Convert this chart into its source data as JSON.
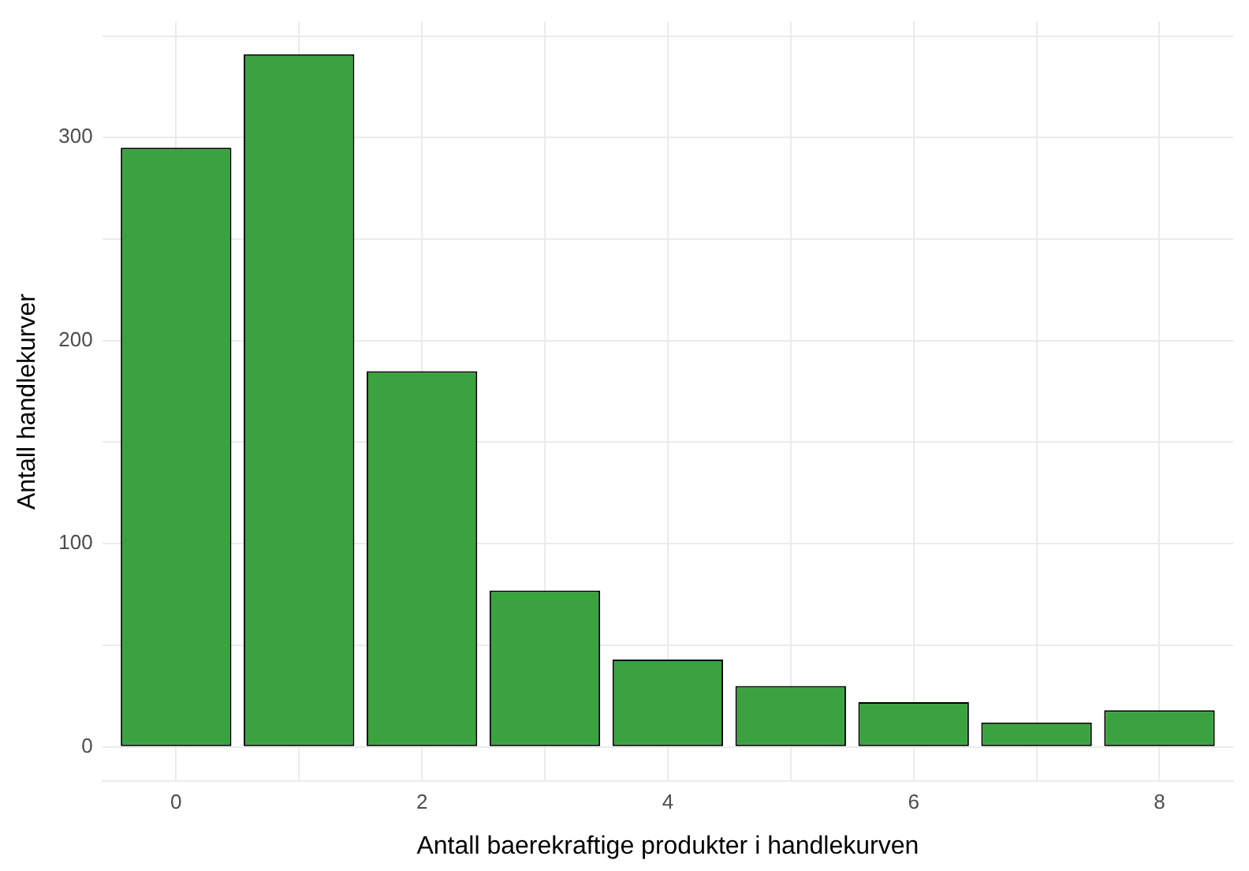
{
  "chart_data": {
    "type": "bar",
    "xlabel": "Antall baerekraftige produkter i handlekurven",
    "ylabel": "Antall handlekurver",
    "x": [
      0,
      1,
      2,
      3,
      4,
      5,
      6,
      7,
      8
    ],
    "values": [
      295,
      341,
      185,
      77,
      43,
      30,
      22,
      12,
      18
    ],
    "color": "#3aa33f",
    "xlim": [
      -0.6,
      8.6
    ],
    "xticks": [
      0,
      {
        "value": 1,
        "label": null
      },
      2,
      {
        "value": 3,
        "label": null
      },
      4,
      {
        "value": 5,
        "label": null
      },
      6,
      {
        "value": 7,
        "label": null
      },
      8
    ],
    "ylim": [
      -17,
      357
    ],
    "yticks": [
      0,
      {
        "value": 50,
        "label": null
      },
      100,
      {
        "value": 150,
        "label": null
      },
      200,
      {
        "value": 250,
        "label": null
      },
      300,
      {
        "value": 350,
        "label": null
      }
    ],
    "grid": true,
    "legend": false
  }
}
